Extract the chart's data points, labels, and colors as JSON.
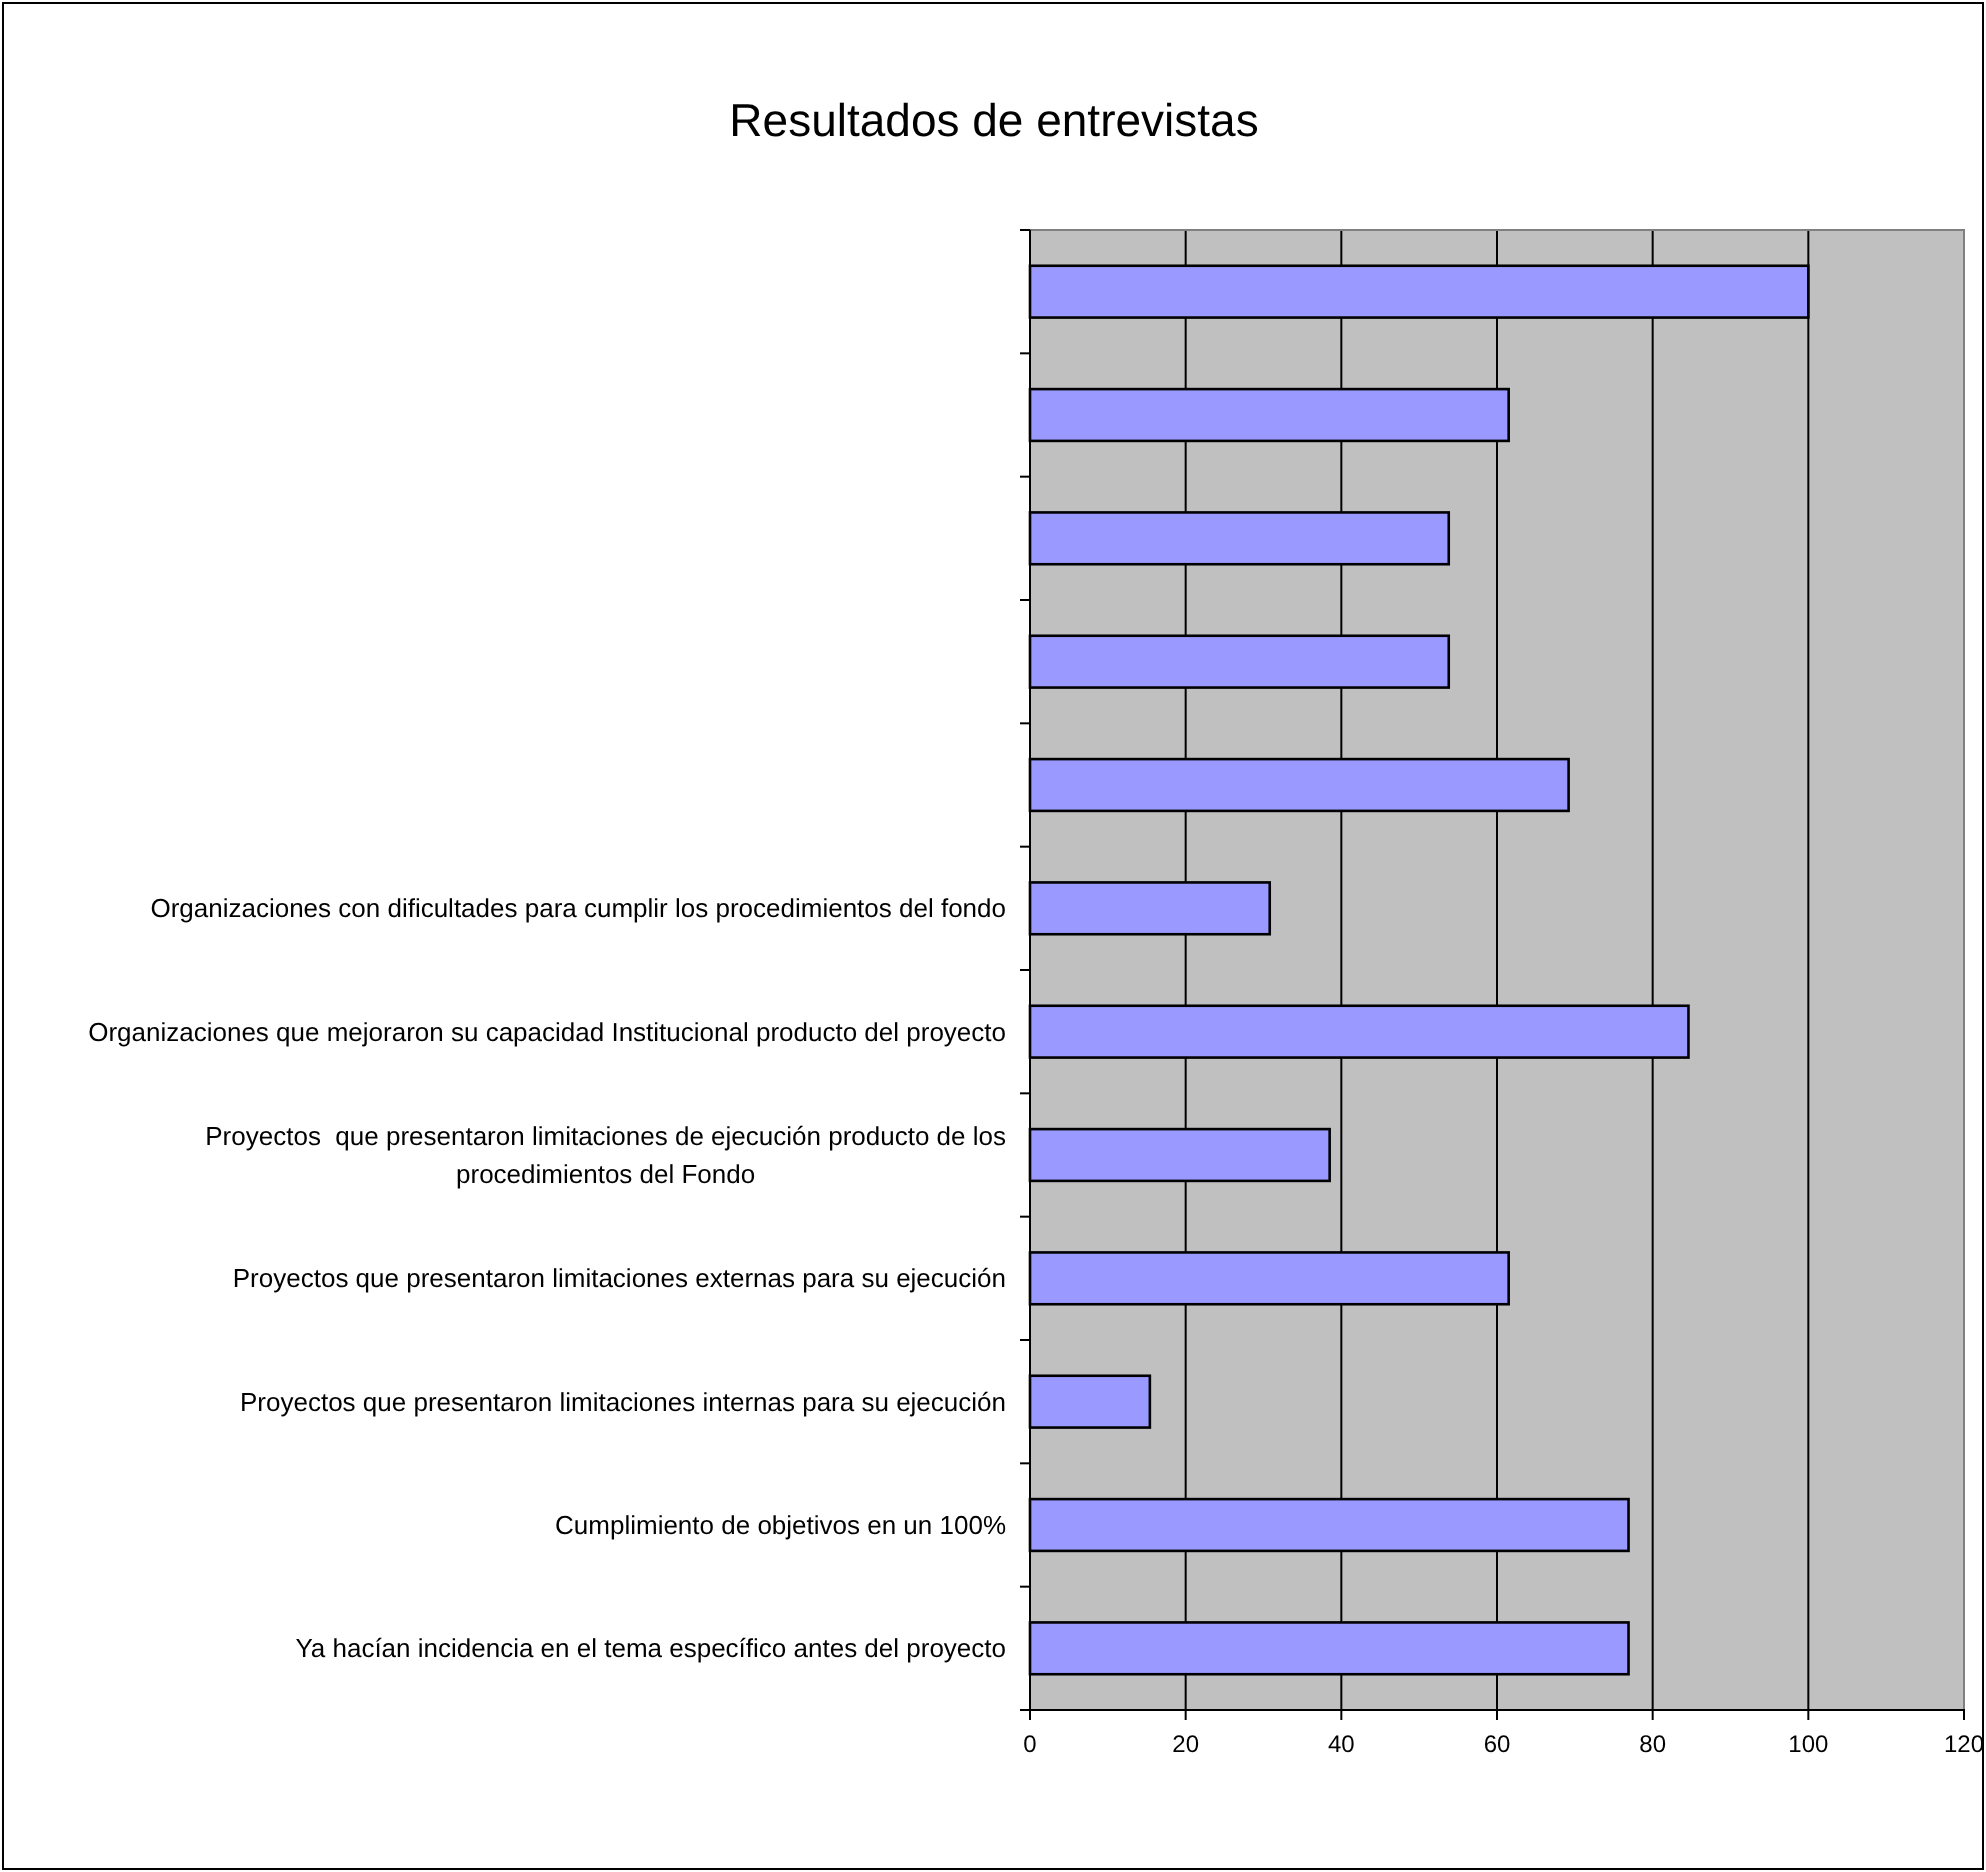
{
  "chart_data": {
    "type": "bar",
    "orientation": "horizontal",
    "title": "Resultados de entrevistas",
    "categories": [
      null,
      null,
      null,
      null,
      null,
      "Organizaciones con dificultades para cumplir los procedimientos del fondo",
      "Organizaciones que mejoraron su capacidad Institucional producto del proyecto",
      "Proyectos  que presentaron limitaciones de ejecución producto de los procedimientos del Fondo",
      "Proyectos que presentaron limitaciones externas para su ejecución",
      "Proyectos que presentaron limitaciones internas para su ejecución",
      "Cumplimiento de objetivos en un 100%",
      "Ya hacían incidencia en el tema específico antes del proyecto"
    ],
    "values": [
      100,
      61.5,
      53.8,
      53.8,
      69.2,
      30.8,
      84.6,
      38.5,
      61.5,
      15.4,
      76.9,
      76.9
    ],
    "color": "#9999ff",
    "xlim": [
      0,
      120
    ],
    "xticks": [
      0,
      20,
      40,
      60,
      80,
      100,
      120
    ],
    "grid": "x"
  }
}
